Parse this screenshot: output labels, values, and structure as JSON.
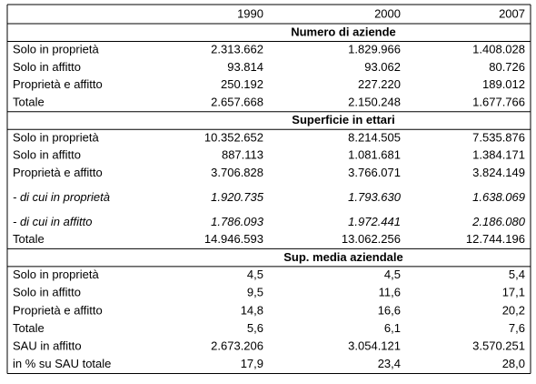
{
  "header": {
    "columns": [
      "1990",
      "2000",
      "2007"
    ]
  },
  "sections": [
    {
      "title": "Numero di aziende",
      "rows": [
        {
          "label": "Solo in proprietà",
          "values": [
            "2.313.662",
            "1.829.966",
            "1.408.028"
          ]
        },
        {
          "label": "Solo in affitto",
          "values": [
            "93.814",
            "93.062",
            "80.726"
          ]
        },
        {
          "label": "Proprietà e affitto",
          "values": [
            "250.192",
            "227.220",
            "189.012"
          ]
        },
        {
          "label": "Totale",
          "values": [
            "2.657.668",
            "2.150.248",
            "1.677.766"
          ]
        }
      ]
    },
    {
      "title": "Superficie in ettari",
      "rows": [
        {
          "label": "Solo in proprietà",
          "values": [
            "10.352.652",
            "8.214.505",
            "7.535.876"
          ]
        },
        {
          "label": "Solo in affitto",
          "values": [
            "887.113",
            "1.081.681",
            "1.384.171"
          ]
        },
        {
          "label": "Proprietà e affitto",
          "values": [
            "3.706.828",
            "3.766.071",
            "3.824.149"
          ]
        },
        {
          "label": "- di cui in proprietà",
          "values": [
            "1.920.735",
            "1.793.630",
            "1.638.069"
          ],
          "italic": true
        },
        {
          "label": "- di cui in affitto",
          "values": [
            "1.786.093",
            "1.972.441",
            "2.186.080"
          ],
          "italic": true
        },
        {
          "label": "Totale",
          "values": [
            "14.946.593",
            "13.062.256",
            "12.744.196"
          ]
        }
      ]
    },
    {
      "title": "Sup. media aziendale",
      "rows": [
        {
          "label": "Solo in proprietà",
          "values": [
            "4,5",
            "4,5",
            "5,4"
          ]
        },
        {
          "label": "Solo in affitto",
          "values": [
            "9,5",
            "11,6",
            "17,1"
          ]
        },
        {
          "label": "Proprietà e affitto",
          "values": [
            "14,8",
            "16,6",
            "20,2"
          ]
        },
        {
          "label": "Totale",
          "values": [
            "5,6",
            "6,1",
            "7,6"
          ]
        },
        {
          "label": "SAU in affitto",
          "values": [
            "2.673.206",
            "3.054.121",
            "3.570.251"
          ]
        },
        {
          "label": "in % su SAU totale",
          "values": [
            "17,9",
            "23,4",
            "28,0"
          ]
        }
      ]
    }
  ]
}
